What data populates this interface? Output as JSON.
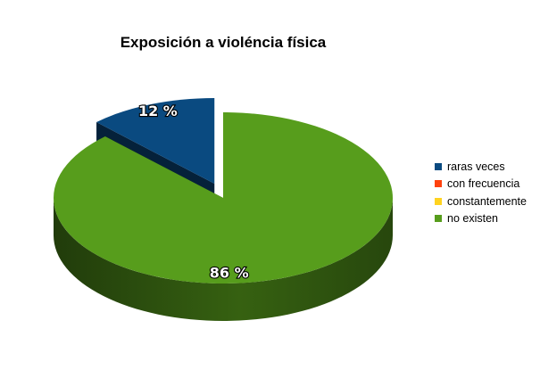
{
  "chart_data": {
    "type": "pie",
    "title": "Exposición a violéncia física",
    "categories": [
      "raras veces",
      "con frecuencia",
      "constantemente",
      "no existen"
    ],
    "values": [
      12,
      0,
      0,
      86
    ],
    "data_labels": [
      "12 %",
      "",
      "",
      "86 %"
    ],
    "colors": [
      "#0a4a80",
      "#ff420e",
      "#ffd320",
      "#579d1c"
    ],
    "exploded": "raras veces",
    "three_d": true,
    "legend": "right"
  }
}
